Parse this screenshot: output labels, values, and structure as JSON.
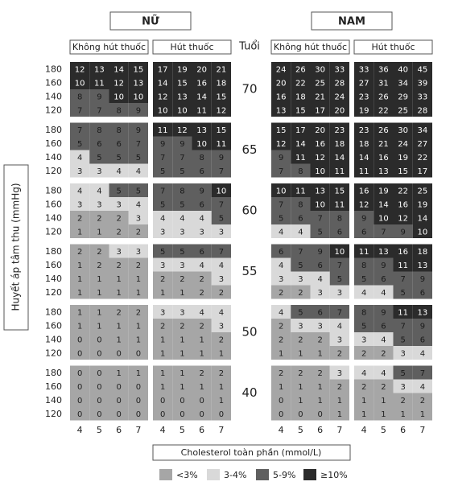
{
  "chart_data": {
    "type": "heatmap",
    "sexes": [
      "NỮ",
      "NAM"
    ],
    "age_label": "Tuổi",
    "y_axis_label": "Huyết áp tâm thu (mmHg)",
    "x_axis_label": "Cholesterol toàn phần (mmol/L)",
    "ages": [
      70,
      65,
      60,
      55,
      50,
      40
    ],
    "bp": [
      180,
      160,
      140,
      120
    ],
    "cholesterol": [
      4,
      5,
      6,
      7
    ],
    "legend": [
      {
        "label": "<3%",
        "from": 0,
        "color": "#a6a6a6",
        "text_color": "#222"
      },
      {
        "label": "3-4%",
        "from": 3,
        "color": "#d9d9d9",
        "text_color": "#222"
      },
      {
        "label": "5-9%",
        "from": 5,
        "color": "#5f5f5f",
        "text_color": "#1a1a1a"
      },
      {
        "label": "≥10%",
        "from": 10,
        "color": "#2b2b2b",
        "text_color": "#fff"
      }
    ],
    "panels": [
      {
        "sex": 0,
        "title": "Không hút thuốc",
        "values": [
          [
            [
              12,
              13,
              14,
              15
            ],
            [
              10,
              11,
              12,
              13
            ],
            [
              8,
              9,
              10,
              10
            ],
            [
              7,
              7,
              8,
              9
            ]
          ],
          [
            [
              7,
              8,
              8,
              9
            ],
            [
              5,
              6,
              6,
              7
            ],
            [
              4,
              5,
              5,
              5
            ],
            [
              3,
              3,
              4,
              4
            ]
          ],
          [
            [
              4,
              4,
              5,
              5
            ],
            [
              3,
              3,
              3,
              4
            ],
            [
              2,
              2,
              2,
              3
            ],
            [
              1,
              1,
              2,
              2
            ]
          ],
          [
            [
              2,
              2,
              3,
              3
            ],
            [
              1,
              2,
              2,
              2
            ],
            [
              1,
              1,
              1,
              1
            ],
            [
              1,
              1,
              1,
              1
            ]
          ],
          [
            [
              1,
              1,
              2,
              2
            ],
            [
              1,
              1,
              1,
              1
            ],
            [
              0,
              0,
              1,
              1
            ],
            [
              0,
              0,
              0,
              0
            ]
          ],
          [
            [
              0,
              0,
              1,
              1
            ],
            [
              0,
              0,
              0,
              0
            ],
            [
              0,
              0,
              0,
              0
            ],
            [
              0,
              0,
              0,
              0
            ]
          ]
        ]
      },
      {
        "sex": 0,
        "title": "Hút thuốc",
        "values": [
          [
            [
              17,
              19,
              20,
              21
            ],
            [
              14,
              15,
              16,
              18
            ],
            [
              12,
              13,
              14,
              15
            ],
            [
              10,
              10,
              11,
              12
            ]
          ],
          [
            [
              11,
              12,
              13,
              15
            ],
            [
              9,
              9,
              10,
              11
            ],
            [
              7,
              7,
              8,
              9
            ],
            [
              5,
              5,
              6,
              7
            ]
          ],
          [
            [
              7,
              8,
              9,
              10
            ],
            [
              5,
              5,
              6,
              7
            ],
            [
              4,
              4,
              4,
              5
            ],
            [
              3,
              3,
              3,
              3
            ]
          ],
          [
            [
              5,
              5,
              6,
              7
            ],
            [
              3,
              3,
              4,
              4
            ],
            [
              2,
              2,
              2,
              3
            ],
            [
              1,
              1,
              2,
              2
            ]
          ],
          [
            [
              3,
              3,
              4,
              4
            ],
            [
              2,
              2,
              2,
              3
            ],
            [
              1,
              1,
              1,
              2
            ],
            [
              1,
              1,
              1,
              1
            ]
          ],
          [
            [
              1,
              1,
              2,
              2
            ],
            [
              1,
              1,
              1,
              1
            ],
            [
              0,
              0,
              0,
              1
            ],
            [
              0,
              0,
              0,
              0
            ]
          ]
        ]
      },
      {
        "sex": 1,
        "title": "Không hút thuốc",
        "values": [
          [
            [
              24,
              26,
              30,
              33
            ],
            [
              20,
              22,
              25,
              28
            ],
            [
              16,
              18,
              21,
              24
            ],
            [
              13,
              15,
              17,
              20
            ]
          ],
          [
            [
              15,
              17,
              20,
              23
            ],
            [
              12,
              14,
              16,
              18
            ],
            [
              9,
              11,
              12,
              14
            ],
            [
              7,
              8,
              10,
              11
            ]
          ],
          [
            [
              10,
              11,
              13,
              15
            ],
            [
              7,
              8,
              10,
              11
            ],
            [
              5,
              6,
              7,
              8
            ],
            [
              4,
              4,
              5,
              6
            ]
          ],
          [
            [
              6,
              7,
              9,
              10
            ],
            [
              4,
              5,
              6,
              7
            ],
            [
              3,
              3,
              4,
              5
            ],
            [
              2,
              2,
              3,
              3
            ]
          ],
          [
            [
              4,
              5,
              6,
              7
            ],
            [
              2,
              3,
              3,
              4
            ],
            [
              2,
              2,
              2,
              3
            ],
            [
              1,
              1,
              1,
              2
            ]
          ],
          [
            [
              2,
              2,
              2,
              3
            ],
            [
              1,
              1,
              1,
              2
            ],
            [
              0,
              1,
              1,
              1
            ],
            [
              0,
              0,
              0,
              1
            ]
          ]
        ]
      },
      {
        "sex": 1,
        "title": "Hút thuốc",
        "values": [
          [
            [
              33,
              36,
              40,
              45
            ],
            [
              27,
              31,
              34,
              39
            ],
            [
              23,
              26,
              29,
              33
            ],
            [
              19,
              22,
              25,
              28
            ]
          ],
          [
            [
              23,
              26,
              30,
              34
            ],
            [
              18,
              21,
              24,
              27
            ],
            [
              14,
              16,
              19,
              22
            ],
            [
              11,
              13,
              15,
              17
            ]
          ],
          [
            [
              16,
              19,
              22,
              25
            ],
            [
              12,
              14,
              16,
              19
            ],
            [
              9,
              10,
              12,
              14
            ],
            [
              6,
              7,
              9,
              10
            ]
          ],
          [
            [
              11,
              13,
              16,
              18
            ],
            [
              8,
              9,
              11,
              13
            ],
            [
              5,
              6,
              7,
              9
            ],
            [
              4,
              4,
              5,
              6
            ]
          ],
          [
            [
              8,
              9,
              11,
              13
            ],
            [
              5,
              6,
              7,
              9
            ],
            [
              3,
              4,
              5,
              6
            ],
            [
              2,
              2,
              3,
              4
            ]
          ],
          [
            [
              4,
              4,
              5,
              7
            ],
            [
              2,
              2,
              3,
              4
            ],
            [
              1,
              1,
              2,
              2
            ],
            [
              1,
              1,
              1,
              1
            ]
          ]
        ]
      }
    ]
  }
}
